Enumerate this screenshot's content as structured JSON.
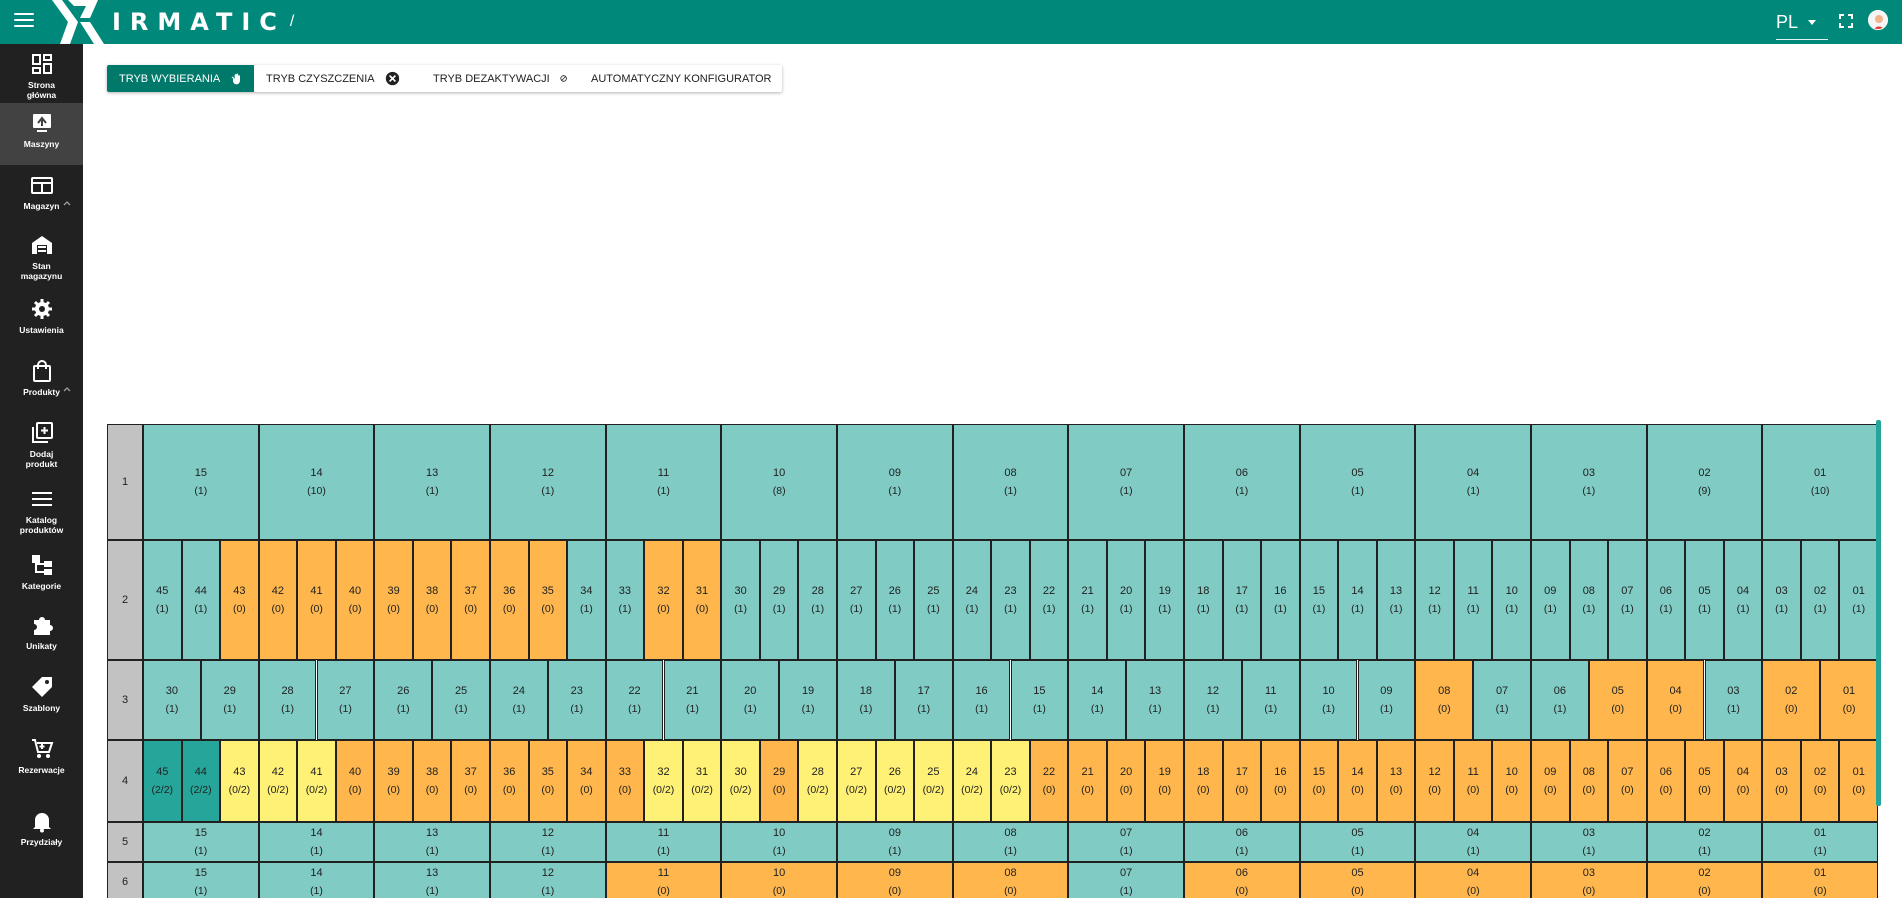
{
  "header": {
    "logo_text": "IRMATIC",
    "breadcrumb_separator": "/",
    "language": "PL"
  },
  "sidebar": {
    "items": [
      {
        "label": "Strona\ngłówna",
        "icon": "dashboard-icon"
      },
      {
        "label": "Maszyny",
        "icon": "machine-icon",
        "active": true
      },
      {
        "label": "Magazyn",
        "icon": "warehouse-icon",
        "caret": true
      },
      {
        "label": "Stan\nmagazynu",
        "icon": "store-icon"
      },
      {
        "label": "Ustawienia",
        "icon": "gear-icon"
      },
      {
        "label": "Produkty",
        "icon": "bag-icon",
        "caret": true
      },
      {
        "label": "Dodaj\nprodukt",
        "icon": "add-box-icon"
      },
      {
        "label": "Katalog\nproduktów",
        "icon": "list-icon"
      },
      {
        "label": "Kategorie",
        "icon": "category-icon"
      },
      {
        "label": "Unikaty",
        "icon": "puzzle-icon"
      },
      {
        "label": "Szablony",
        "icon": "tag-icon"
      },
      {
        "label": "Rezerwacje",
        "icon": "cart-icon"
      },
      {
        "label": "Przydziały",
        "icon": "bell-icon"
      }
    ]
  },
  "modes": [
    {
      "label": "TRYB WYBIERANIA",
      "icon": "hand-icon",
      "active": true
    },
    {
      "label": "TRYB CZYSZCZENIA",
      "icon": "close-circle-icon"
    },
    {
      "label": "TRYB DEZAKTYWACJI",
      "icon": "block-icon"
    },
    {
      "label": "AUTOMATYCZNY KONFIGURATOR",
      "icon": "bulb-head-icon"
    }
  ],
  "colors": {
    "teal_cell": "#80cbc4",
    "orange_cell": "#ffb74d",
    "yellow_cell": "#fff176",
    "dark_teal_cell": "#26a69a",
    "header": "#00897b",
    "sidebar": "#212121"
  },
  "grid": {
    "rows": [
      {
        "label": "1",
        "cells": [
          [
            "15",
            "(1)",
            "t"
          ],
          [
            "14",
            "(10)",
            "t"
          ],
          [
            "13",
            "(1)",
            "t"
          ],
          [
            "12",
            "(1)",
            "t"
          ],
          [
            "11",
            "(1)",
            "t"
          ],
          [
            "10",
            "(8)",
            "t"
          ],
          [
            "09",
            "(1)",
            "t"
          ],
          [
            "08",
            "(1)",
            "t"
          ],
          [
            "07",
            "(1)",
            "t"
          ],
          [
            "06",
            "(1)",
            "t"
          ],
          [
            "05",
            "(1)",
            "t"
          ],
          [
            "04",
            "(1)",
            "t"
          ],
          [
            "03",
            "(1)",
            "t"
          ],
          [
            "02",
            "(9)",
            "t"
          ],
          [
            "01",
            "(10)",
            "t"
          ]
        ]
      },
      {
        "label": "2",
        "cells": [
          [
            "45",
            "(1)",
            "t"
          ],
          [
            "44",
            "(1)",
            "t"
          ],
          [
            "43",
            "(0)",
            "o"
          ],
          [
            "42",
            "(0)",
            "o"
          ],
          [
            "41",
            "(0)",
            "o"
          ],
          [
            "40",
            "(0)",
            "o"
          ],
          [
            "39",
            "(0)",
            "o"
          ],
          [
            "38",
            "(0)",
            "o"
          ],
          [
            "37",
            "(0)",
            "o"
          ],
          [
            "36",
            "(0)",
            "o"
          ],
          [
            "35",
            "(0)",
            "o"
          ],
          [
            "34",
            "(1)",
            "t"
          ],
          [
            "33",
            "(1)",
            "t"
          ],
          [
            "32",
            "(0)",
            "o"
          ],
          [
            "31",
            "(0)",
            "o"
          ],
          [
            "30",
            "(1)",
            "t"
          ],
          [
            "29",
            "(1)",
            "t"
          ],
          [
            "28",
            "(1)",
            "t"
          ],
          [
            "27",
            "(1)",
            "t"
          ],
          [
            "26",
            "(1)",
            "t"
          ],
          [
            "25",
            "(1)",
            "t"
          ],
          [
            "24",
            "(1)",
            "t"
          ],
          [
            "23",
            "(1)",
            "t"
          ],
          [
            "22",
            "(1)",
            "t"
          ],
          [
            "21",
            "(1)",
            "t"
          ],
          [
            "20",
            "(1)",
            "t"
          ],
          [
            "19",
            "(1)",
            "t"
          ],
          [
            "18",
            "(1)",
            "t"
          ],
          [
            "17",
            "(1)",
            "t"
          ],
          [
            "16",
            "(1)",
            "t"
          ],
          [
            "15",
            "(1)",
            "t"
          ],
          [
            "14",
            "(1)",
            "t"
          ],
          [
            "13",
            "(1)",
            "t"
          ],
          [
            "12",
            "(1)",
            "t"
          ],
          [
            "11",
            "(1)",
            "t"
          ],
          [
            "10",
            "(1)",
            "t"
          ],
          [
            "09",
            "(1)",
            "t"
          ],
          [
            "08",
            "(1)",
            "t"
          ],
          [
            "07",
            "(1)",
            "t"
          ],
          [
            "06",
            "(1)",
            "t"
          ],
          [
            "05",
            "(1)",
            "t"
          ],
          [
            "04",
            "(1)",
            "t"
          ],
          [
            "03",
            "(1)",
            "t"
          ],
          [
            "02",
            "(1)",
            "t"
          ],
          [
            "01",
            "(1)",
            "t"
          ]
        ]
      },
      {
        "label": "3",
        "cells": [
          [
            "30",
            "(1)",
            "t"
          ],
          [
            "29",
            "(1)",
            "t"
          ],
          [
            "28",
            "(1)",
            "t"
          ],
          [
            "27",
            "(1)",
            "t"
          ],
          [
            "26",
            "(1)",
            "t"
          ],
          [
            "25",
            "(1)",
            "t"
          ],
          [
            "24",
            "(1)",
            "t"
          ],
          [
            "23",
            "(1)",
            "t"
          ],
          [
            "22",
            "(1)",
            "t"
          ],
          [
            "21",
            "(1)",
            "t"
          ],
          [
            "20",
            "(1)",
            "t"
          ],
          [
            "19",
            "(1)",
            "t"
          ],
          [
            "18",
            "(1)",
            "t"
          ],
          [
            "17",
            "(1)",
            "t"
          ],
          [
            "16",
            "(1)",
            "t"
          ],
          [
            "15",
            "(1)",
            "t"
          ],
          [
            "14",
            "(1)",
            "t"
          ],
          [
            "13",
            "(1)",
            "t"
          ],
          [
            "12",
            "(1)",
            "t"
          ],
          [
            "11",
            "(1)",
            "t"
          ],
          [
            "10",
            "(1)",
            "t"
          ],
          [
            "09",
            "(1)",
            "t"
          ],
          [
            "08",
            "(0)",
            "o"
          ],
          [
            "07",
            "(1)",
            "t"
          ],
          [
            "06",
            "(1)",
            "t"
          ],
          [
            "05",
            "(0)",
            "o"
          ],
          [
            "04",
            "(0)",
            "o"
          ],
          [
            "03",
            "(1)",
            "t"
          ],
          [
            "02",
            "(0)",
            "o"
          ],
          [
            "01",
            "(0)",
            "o"
          ]
        ]
      },
      {
        "label": "4",
        "cells": [
          [
            "45",
            "(2/2)",
            "d"
          ],
          [
            "44",
            "(2/2)",
            "d"
          ],
          [
            "43",
            "(0/2)",
            "y"
          ],
          [
            "42",
            "(0/2)",
            "y"
          ],
          [
            "41",
            "(0/2)",
            "y"
          ],
          [
            "40",
            "(0)",
            "o"
          ],
          [
            "39",
            "(0)",
            "o"
          ],
          [
            "38",
            "(0)",
            "o"
          ],
          [
            "37",
            "(0)",
            "o"
          ],
          [
            "36",
            "(0)",
            "o"
          ],
          [
            "35",
            "(0)",
            "o"
          ],
          [
            "34",
            "(0)",
            "o"
          ],
          [
            "33",
            "(0)",
            "o"
          ],
          [
            "32",
            "(0/2)",
            "y"
          ],
          [
            "31",
            "(0/2)",
            "y"
          ],
          [
            "30",
            "(0/2)",
            "y"
          ],
          [
            "29",
            "(0)",
            "o"
          ],
          [
            "28",
            "(0/2)",
            "y"
          ],
          [
            "27",
            "(0/2)",
            "y"
          ],
          [
            "26",
            "(0/2)",
            "y"
          ],
          [
            "25",
            "(0/2)",
            "y"
          ],
          [
            "24",
            "(0/2)",
            "y"
          ],
          [
            "23",
            "(0/2)",
            "y"
          ],
          [
            "22",
            "(0)",
            "o"
          ],
          [
            "21",
            "(0)",
            "o"
          ],
          [
            "20",
            "(0)",
            "o"
          ],
          [
            "19",
            "(0)",
            "o"
          ],
          [
            "18",
            "(0)",
            "o"
          ],
          [
            "17",
            "(0)",
            "o"
          ],
          [
            "16",
            "(0)",
            "o"
          ],
          [
            "15",
            "(0)",
            "o"
          ],
          [
            "14",
            "(0)",
            "o"
          ],
          [
            "13",
            "(0)",
            "o"
          ],
          [
            "12",
            "(0)",
            "o"
          ],
          [
            "11",
            "(0)",
            "o"
          ],
          [
            "10",
            "(0)",
            "o"
          ],
          [
            "09",
            "(0)",
            "o"
          ],
          [
            "08",
            "(0)",
            "o"
          ],
          [
            "07",
            "(0)",
            "o"
          ],
          [
            "06",
            "(0)",
            "o"
          ],
          [
            "05",
            "(0)",
            "o"
          ],
          [
            "04",
            "(0)",
            "o"
          ],
          [
            "03",
            "(0)",
            "o"
          ],
          [
            "02",
            "(0)",
            "o"
          ],
          [
            "01",
            "(0)",
            "o"
          ]
        ]
      },
      {
        "label": "5",
        "cells": [
          [
            "15",
            "(1)",
            "t"
          ],
          [
            "14",
            "(1)",
            "t"
          ],
          [
            "13",
            "(1)",
            "t"
          ],
          [
            "12",
            "(1)",
            "t"
          ],
          [
            "11",
            "(1)",
            "t"
          ],
          [
            "10",
            "(1)",
            "t"
          ],
          [
            "09",
            "(1)",
            "t"
          ],
          [
            "08",
            "(1)",
            "t"
          ],
          [
            "07",
            "(1)",
            "t"
          ],
          [
            "06",
            "(1)",
            "t"
          ],
          [
            "05",
            "(1)",
            "t"
          ],
          [
            "04",
            "(1)",
            "t"
          ],
          [
            "03",
            "(1)",
            "t"
          ],
          [
            "02",
            "(1)",
            "t"
          ],
          [
            "01",
            "(1)",
            "t"
          ]
        ]
      },
      {
        "label": "6",
        "cells": [
          [
            "15",
            "(1)",
            "t"
          ],
          [
            "14",
            "(1)",
            "t"
          ],
          [
            "13",
            "(1)",
            "t"
          ],
          [
            "12",
            "(1)",
            "t"
          ],
          [
            "11",
            "(0)",
            "o"
          ],
          [
            "10",
            "(0)",
            "o"
          ],
          [
            "09",
            "(0)",
            "o"
          ],
          [
            "08",
            "(0)",
            "o"
          ],
          [
            "07",
            "(1)",
            "t"
          ],
          [
            "06",
            "(0)",
            "o"
          ],
          [
            "05",
            "(0)",
            "o"
          ],
          [
            "04",
            "(0)",
            "o"
          ],
          [
            "03",
            "(0)",
            "o"
          ],
          [
            "02",
            "(0)",
            "o"
          ],
          [
            "01",
            "(0)",
            "o"
          ]
        ]
      }
    ]
  }
}
